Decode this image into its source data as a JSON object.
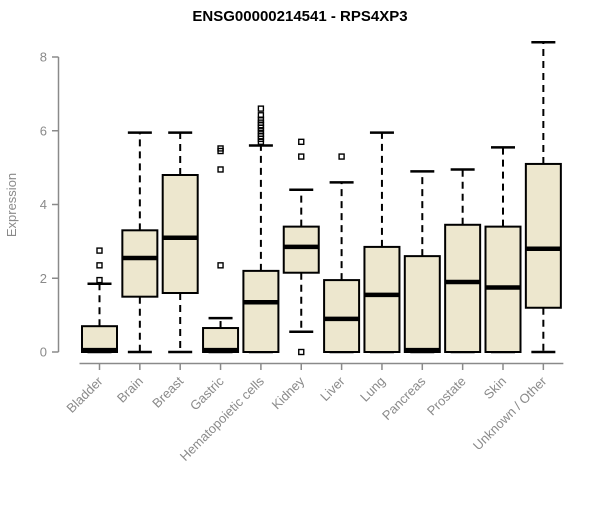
{
  "title": "ENSG00000214541 - RPS4XP3",
  "colors": {
    "box_fill": "#EDE7CE",
    "box_border": "#000000",
    "median": "#000000",
    "whisker": "#000000",
    "axis": "#8A8A8A",
    "tick_label": "#8A8A8A",
    "title_color": "#000000",
    "background": "#FFFFFF"
  },
  "chart_data": {
    "type": "boxplot",
    "title": "ENSG00000214541 - RPS4XP3",
    "xlabel": "",
    "ylabel": "Expression",
    "ylim": [
      0,
      8.5
    ],
    "yticks": [
      0,
      2,
      4,
      6,
      8
    ],
    "grid": false,
    "legend": false,
    "categories": [
      "Bladder",
      "Brain",
      "Breast",
      "Gastric",
      "Hematopoietic cells",
      "Kidney",
      "Liver",
      "Lung",
      "Pancreas",
      "Prostate",
      "Skin",
      "Unknown / Other"
    ],
    "boxes": [
      {
        "name": "Bladder",
        "whisker_low": 0,
        "q1": 0,
        "median": 0.05,
        "q3": 0.7,
        "whisker_high": 1.85,
        "outliers": [
          1.95,
          2.35,
          2.75
        ]
      },
      {
        "name": "Brain",
        "whisker_low": 0,
        "q1": 1.5,
        "median": 2.55,
        "q3": 3.3,
        "whisker_high": 5.95,
        "outliers": []
      },
      {
        "name": "Breast",
        "whisker_low": 0,
        "q1": 1.6,
        "median": 3.1,
        "q3": 4.8,
        "whisker_high": 5.95,
        "outliers": []
      },
      {
        "name": "Gastric",
        "whisker_low": 0,
        "q1": 0,
        "median": 0.05,
        "q3": 0.65,
        "whisker_high": 0.92,
        "outliers": [
          2.35,
          4.95,
          5.45,
          5.52
        ]
      },
      {
        "name": "Hematopoietic cells",
        "whisker_low": 0,
        "q1": 0,
        "median": 1.35,
        "q3": 2.2,
        "whisker_high": 5.6,
        "outliers": [
          5.7,
          5.78,
          5.85,
          5.92,
          6.0,
          6.08,
          6.15,
          6.22,
          6.3,
          6.42,
          6.6
        ]
      },
      {
        "name": "Kidney",
        "whisker_low": 0.55,
        "q1": 2.15,
        "median": 2.85,
        "q3": 3.4,
        "whisker_high": 4.4,
        "outliers": [
          0.0,
          5.3,
          5.7
        ]
      },
      {
        "name": "Liver",
        "whisker_low": 0,
        "q1": 0,
        "median": 0.9,
        "q3": 1.95,
        "whisker_high": 4.6,
        "outliers": [
          5.3
        ]
      },
      {
        "name": "Lung",
        "whisker_low": 0,
        "q1": 0,
        "median": 1.55,
        "q3": 2.85,
        "whisker_high": 5.95,
        "outliers": []
      },
      {
        "name": "Pancreas",
        "whisker_low": 0,
        "q1": 0,
        "median": 0.05,
        "q3": 2.6,
        "whisker_high": 4.9,
        "outliers": []
      },
      {
        "name": "Prostate",
        "whisker_low": 0,
        "q1": 0,
        "median": 1.9,
        "q3": 3.45,
        "whisker_high": 4.95,
        "outliers": []
      },
      {
        "name": "Skin",
        "whisker_low": 0,
        "q1": 0,
        "median": 1.75,
        "q3": 3.4,
        "whisker_high": 5.55,
        "outliers": []
      },
      {
        "name": "Unknown / Other",
        "whisker_low": 0,
        "q1": 1.2,
        "median": 2.8,
        "q3": 5.1,
        "whisker_high": 8.4,
        "outliers": []
      }
    ]
  }
}
